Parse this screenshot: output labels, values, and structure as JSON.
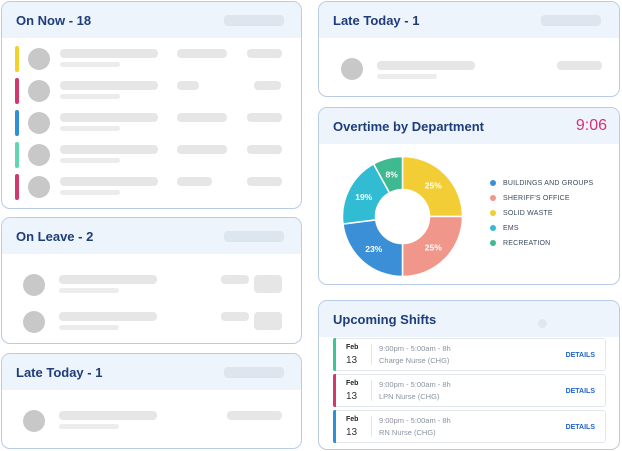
{
  "on_now": {
    "title": "On Now - 18"
  },
  "on_leave": {
    "title": "On Leave - 2"
  },
  "late_today_left": {
    "title": "Late Today - 1"
  },
  "late_today_right": {
    "title": "Late Today - 1"
  },
  "overtime": {
    "title": "Overtime by Department",
    "clock": "9:06"
  },
  "upcoming_shifts": {
    "title": "Upcoming Shifts",
    "shifts": [
      {
        "month": "Feb",
        "day": "13",
        "time": "9:00pm - 5:00am - 8h",
        "role": "Charge Nurse (CHG)",
        "details": "DETAILS",
        "color": "#3dc49b"
      },
      {
        "month": "Feb",
        "day": "13",
        "time": "9:00pm - 5:00am - 8h",
        "role": "LPN Nurse (CHG)",
        "details": "DETAILS",
        "color": "#d2386c"
      },
      {
        "month": "Feb",
        "day": "13",
        "time": "9:00pm - 5:00am - 8h",
        "role": "RN Nurse (CHG)",
        "details": "DETAILS",
        "color": "#2d8fd5"
      }
    ]
  },
  "status_colors": [
    "#f1d12a",
    "#d2386c",
    "#2d8fd5",
    "#61d6b0",
    "#d2386c"
  ],
  "chart_data": {
    "type": "pie",
    "categories": [
      "BUILDINGS AND GROUPS",
      "SHERIFF'S OFFICE",
      "SOLID WASTE",
      "EMS",
      "RECREATION"
    ],
    "values": [
      23,
      25,
      25,
      19,
      8
    ],
    "labels": [
      "23%",
      "25%",
      "25%",
      "19%",
      "8%"
    ],
    "colors": [
      "#3b8fd6",
      "#f0968a",
      "#f2cd35",
      "#31bcd3",
      "#3fb98f"
    ],
    "legend": "right"
  }
}
